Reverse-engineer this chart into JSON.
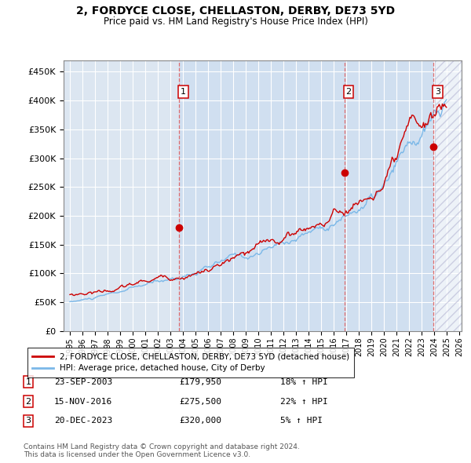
{
  "title": "2, FORDYCE CLOSE, CHELLASTON, DERBY, DE73 5YD",
  "subtitle": "Price paid vs. HM Land Registry's House Price Index (HPI)",
  "ylim": [
    0,
    470000
  ],
  "yticks": [
    0,
    50000,
    100000,
    150000,
    200000,
    250000,
    300000,
    350000,
    400000,
    450000
  ],
  "ytick_labels": [
    "£0",
    "£50K",
    "£100K",
    "£150K",
    "£200K",
    "£250K",
    "£300K",
    "£350K",
    "£400K",
    "£450K"
  ],
  "plot_bg_color": "#dce6f1",
  "shade_color": "#ccddf0",
  "grid_color": "#ffffff",
  "hpi_color": "#7bb8e8",
  "price_color": "#cc0000",
  "vline_color": "#e06060",
  "legend_label_price": "2, FORDYCE CLOSE, CHELLASTON, DERBY, DE73 5YD (detached house)",
  "legend_label_hpi": "HPI: Average price, detached house, City of Derby",
  "sales": [
    {
      "num": 1,
      "date": "23-SEP-2003",
      "price": 179950,
      "hpi_pct": "18%",
      "x_year": 2003.72
    },
    {
      "num": 2,
      "date": "15-NOV-2016",
      "price": 275500,
      "hpi_pct": "22%",
      "x_year": 2016.87
    },
    {
      "num": 3,
      "date": "20-DEC-2023",
      "price": 320000,
      "hpi_pct": "5%",
      "x_year": 2023.96
    }
  ],
  "footnote1": "Contains HM Land Registry data © Crown copyright and database right 2024.",
  "footnote2": "This data is licensed under the Open Government Licence v3.0.",
  "xmin": 1994.5,
  "xmax": 2026.2,
  "hatch_start": 2024.08
}
